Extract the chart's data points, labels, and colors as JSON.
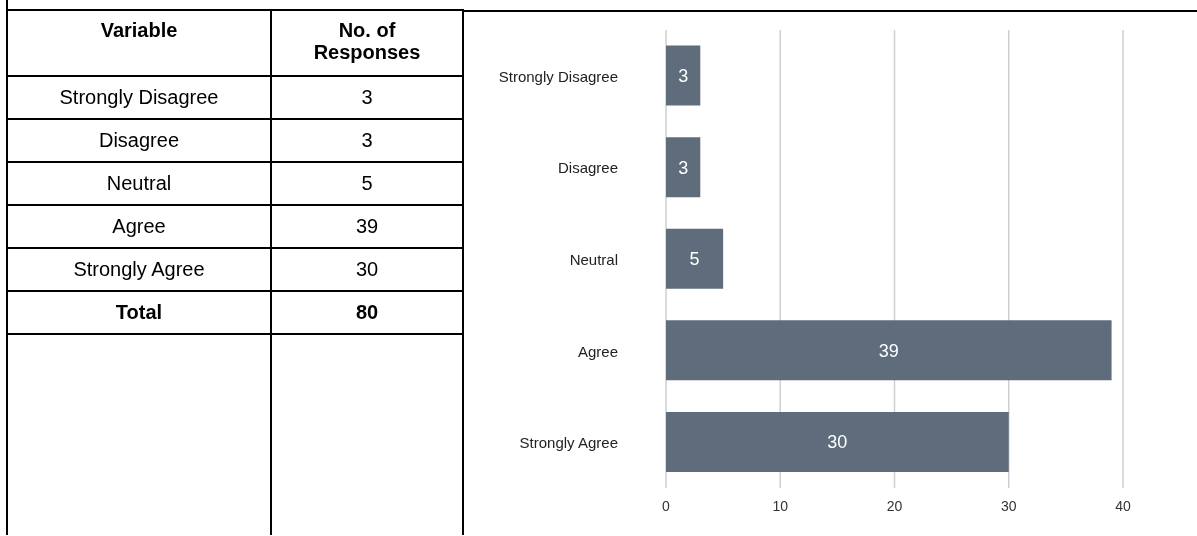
{
  "chart_data": [
    {
      "type": "other",
      "annotations": [
        "Variable",
        "No. of Responses",
        "Strongly Disagree",
        "3",
        "Disagree",
        "3",
        "Neutral",
        "5",
        "Agree",
        "39",
        "Strongly Agree",
        "30",
        "Total",
        "80"
      ]
    },
    {
      "type": "bar",
      "orientation": "horizontal",
      "categories": [
        "Strongly Disagree",
        "Disagree",
        "Neutral",
        "Agree",
        "Strongly Agree"
      ],
      "values": [
        3,
        3,
        5,
        39,
        30
      ],
      "color": "#5e6c7c",
      "xlim": [
        0,
        40
      ],
      "xticks": [
        0,
        10,
        20,
        30,
        40
      ],
      "grid": "x",
      "data_labels": true
    }
  ]
}
